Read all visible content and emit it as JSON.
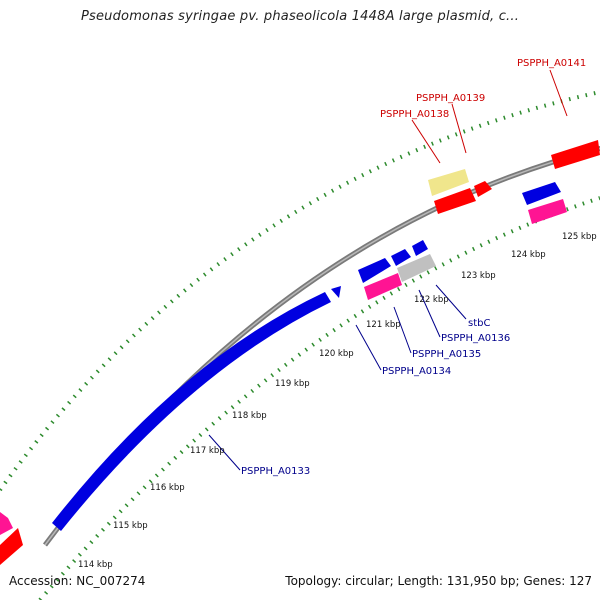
{
  "title": "Pseudomonas syringae pv. phaseolicola 1448A large plasmid, c...",
  "footer": {
    "accession": "Accession: NC_007274",
    "summary": "Topology: circular; Length: 131,950 bp; Genes: 127"
  },
  "colors": {
    "forward_label": "#cc0000",
    "reverse_label": "#00008b",
    "blue_gene": "#0000e0",
    "red_gene": "#ff0000",
    "pink_gene": "#ff1493",
    "grey_gene": "#c0c0c0",
    "yellow_gene": "#f0e68c",
    "tick_green": "#228b22",
    "backbone": "#808080"
  },
  "ticks": [
    {
      "label": "114 kbp"
    },
    {
      "label": "115 kbp"
    },
    {
      "label": "116 kbp"
    },
    {
      "label": "117 kbp"
    },
    {
      "label": "118 kbp"
    },
    {
      "label": "119 kbp"
    },
    {
      "label": "120 kbp"
    },
    {
      "label": "121 kbp"
    },
    {
      "label": "122 kbp"
    },
    {
      "label": "123 kbp"
    },
    {
      "label": "124 kbp"
    },
    {
      "label": "125 kbp"
    }
  ],
  "gene_labels": [
    {
      "name": "PSPPH_A0141",
      "strand": "forward"
    },
    {
      "name": "PSPPH_A0139",
      "strand": "forward"
    },
    {
      "name": "PSPPH_A0138",
      "strand": "forward"
    },
    {
      "name": "stbC",
      "strand": "reverse"
    },
    {
      "name": "PSPPH_A0136",
      "strand": "reverse"
    },
    {
      "name": "PSPPH_A0135",
      "strand": "reverse"
    },
    {
      "name": "PSPPH_A0134",
      "strand": "reverse"
    },
    {
      "name": "PSPPH_A0133",
      "strand": "reverse"
    }
  ]
}
